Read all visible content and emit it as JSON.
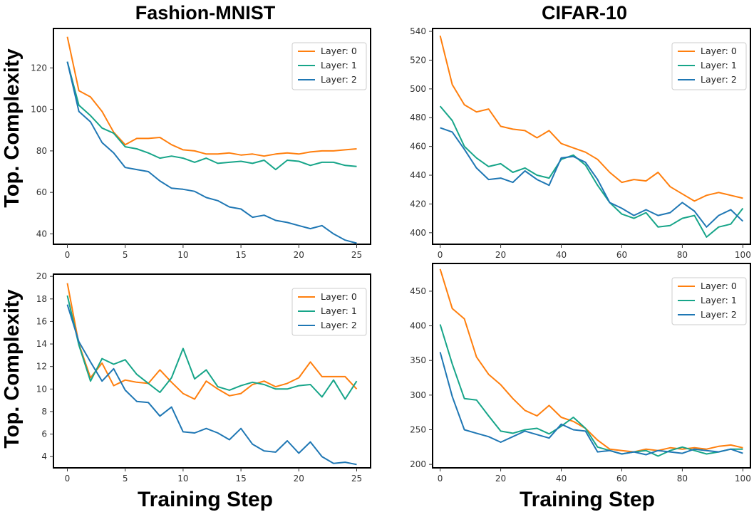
{
  "figure": {
    "col_titles": [
      "Fashion-MNIST",
      "CIFAR-10"
    ],
    "row_ylabel": "Top. Complexity",
    "xlabel": "Training Step"
  },
  "chart_data": [
    {
      "type": "line",
      "dataset": "Fashion-MNIST",
      "xlim": [
        -1.2,
        26.2
      ],
      "ylim": [
        35,
        139
      ],
      "xticks": [
        0,
        5,
        10,
        15,
        20,
        25
      ],
      "yticks": [
        40,
        60,
        80,
        100,
        120
      ],
      "legend_position": "top-right",
      "x": [
        0,
        1,
        2,
        3,
        4,
        5,
        6,
        7,
        8,
        9,
        10,
        11,
        12,
        13,
        14,
        15,
        16,
        17,
        18,
        19,
        20,
        21,
        22,
        23,
        24,
        25
      ],
      "series": [
        {
          "name": "Layer: 0",
          "color": "#ff7f0e",
          "values": [
            135,
            109,
            106,
            99,
            89,
            83,
            86,
            86,
            86.5,
            83,
            80.5,
            80,
            78.5,
            78.5,
            79,
            78,
            78.5,
            77.5,
            78.5,
            79,
            78.5,
            79.5,
            80,
            80,
            80.5,
            81
          ]
        },
        {
          "name": "Layer: 1",
          "color": "#17a589",
          "values": [
            123,
            102,
            97,
            91,
            88.5,
            82,
            81,
            79,
            76.5,
            77.5,
            76.5,
            74.5,
            76.5,
            74,
            74.5,
            75,
            74,
            75.5,
            71,
            75.5,
            75,
            73,
            74.5,
            74.5,
            73,
            72.5
          ]
        },
        {
          "name": "Layer: 2",
          "color": "#1f77b4",
          "values": [
            123,
            99,
            94,
            84,
            79,
            72,
            71,
            70,
            65.5,
            62,
            61.5,
            60.5,
            57.5,
            56,
            53,
            52,
            48,
            49,
            46.5,
            45.5,
            44,
            42.5,
            44,
            40,
            37,
            35.5
          ]
        }
      ]
    },
    {
      "type": "line",
      "dataset": "CIFAR-10",
      "xlim": [
        -2.5,
        102.5
      ],
      "ylim": [
        392,
        542
      ],
      "xticks": [
        0,
        20,
        40,
        60,
        80,
        100
      ],
      "yticks": [
        400,
        420,
        440,
        460,
        480,
        500,
        520,
        540
      ],
      "legend_position": "top-right",
      "x": [
        0,
        4,
        8,
        12,
        16,
        20,
        24,
        28,
        32,
        36,
        40,
        44,
        48,
        52,
        56,
        60,
        64,
        68,
        72,
        76,
        80,
        84,
        88,
        92,
        96,
        100
      ],
      "series": [
        {
          "name": "Layer: 0",
          "color": "#ff7f0e",
          "values": [
            537,
            503,
            489,
            484,
            486,
            474,
            472,
            471,
            466,
            471,
            462,
            459,
            456,
            451,
            442,
            435,
            437,
            436,
            442,
            432,
            427,
            422,
            426,
            428,
            426,
            424
          ]
        },
        {
          "name": "Layer: 1",
          "color": "#17a589",
          "values": [
            488,
            478,
            460,
            452,
            446,
            448,
            442,
            445,
            440,
            438,
            451,
            454,
            447,
            433,
            421,
            413,
            410,
            414,
            404,
            405,
            410,
            412,
            397,
            404,
            406,
            417
          ]
        },
        {
          "name": "Layer: 2",
          "color": "#1f77b4",
          "values": [
            473,
            470,
            458,
            445,
            437,
            438,
            435,
            443,
            437,
            433,
            452,
            453,
            449,
            437,
            421,
            417,
            412,
            416,
            412,
            414,
            421,
            415,
            404,
            412,
            416,
            408
          ]
        }
      ]
    },
    {
      "type": "line",
      "dataset": "Fashion-MNIST",
      "xlim": [
        -1.2,
        26.2
      ],
      "ylim": [
        3,
        20.2
      ],
      "xticks": [
        0,
        5,
        10,
        15,
        20,
        25
      ],
      "yticks": [
        4,
        6,
        8,
        10,
        12,
        14,
        16,
        18,
        20
      ],
      "legend_position": "top-right",
      "x": [
        0,
        1,
        2,
        3,
        4,
        5,
        6,
        7,
        8,
        9,
        10,
        11,
        12,
        13,
        14,
        15,
        16,
        17,
        18,
        19,
        20,
        21,
        22,
        23,
        24,
        25
      ],
      "series": [
        {
          "name": "Layer: 0",
          "color": "#ff7f0e",
          "values": [
            19.4,
            14,
            11,
            12.3,
            10.3,
            10.8,
            10.6,
            10.5,
            11.7,
            10.6,
            9.6,
            9.1,
            10.7,
            10,
            9.4,
            9.6,
            10.4,
            10.7,
            10.2,
            10.5,
            11,
            12.4,
            11.1,
            11.1,
            11.1,
            10
          ]
        },
        {
          "name": "Layer: 1",
          "color": "#17a589",
          "values": [
            18.3,
            13.9,
            10.7,
            12.7,
            12.2,
            12.6,
            11.3,
            10.5,
            9.7,
            11,
            13.6,
            10.9,
            11.7,
            10.2,
            9.9,
            10.3,
            10.6,
            10.4,
            10,
            10,
            10.3,
            10.4,
            9.3,
            10.8,
            9.1,
            10.7
          ]
        },
        {
          "name": "Layer: 2",
          "color": "#1f77b4",
          "values": [
            17.5,
            14.2,
            12.4,
            10.7,
            11.8,
            9.9,
            8.9,
            8.8,
            7.6,
            8.4,
            6.2,
            6.1,
            6.5,
            6.1,
            5.5,
            6.5,
            5.1,
            4.5,
            4.4,
            5.4,
            4.3,
            5.3,
            4,
            3.4,
            3.5,
            3.3
          ]
        }
      ]
    },
    {
      "type": "line",
      "dataset": "CIFAR-10",
      "xlim": [
        -2.5,
        102.5
      ],
      "ylim": [
        195,
        490
      ],
      "xticks": [
        0,
        20,
        40,
        60,
        80,
        100
      ],
      "yticks": [
        200,
        250,
        300,
        350,
        400,
        450
      ],
      "legend_position": "top-right",
      "x": [
        0,
        4,
        8,
        12,
        16,
        20,
        24,
        28,
        32,
        36,
        40,
        44,
        48,
        52,
        56,
        60,
        64,
        68,
        72,
        76,
        80,
        84,
        88,
        92,
        96,
        100
      ],
      "series": [
        {
          "name": "Layer: 0",
          "color": "#ff7f0e",
          "values": [
            482,
            425,
            410,
            355,
            330,
            315,
            295,
            278,
            270,
            285,
            268,
            262,
            252,
            235,
            222,
            220,
            218,
            222,
            220,
            224,
            222,
            224,
            222,
            226,
            228,
            224
          ]
        },
        {
          "name": "Layer: 1",
          "color": "#17a589",
          "values": [
            402,
            345,
            295,
            293,
            270,
            248,
            245,
            250,
            252,
            244,
            255,
            268,
            252,
            225,
            220,
            215,
            218,
            220,
            212,
            220,
            225,
            220,
            215,
            218,
            222,
            222
          ]
        },
        {
          "name": "Layer: 2",
          "color": "#1f77b4",
          "values": [
            362,
            298,
            250,
            245,
            240,
            232,
            240,
            248,
            243,
            238,
            258,
            250,
            248,
            218,
            220,
            215,
            218,
            214,
            220,
            218,
            216,
            222,
            220,
            218,
            222,
            216
          ]
        }
      ]
    }
  ]
}
